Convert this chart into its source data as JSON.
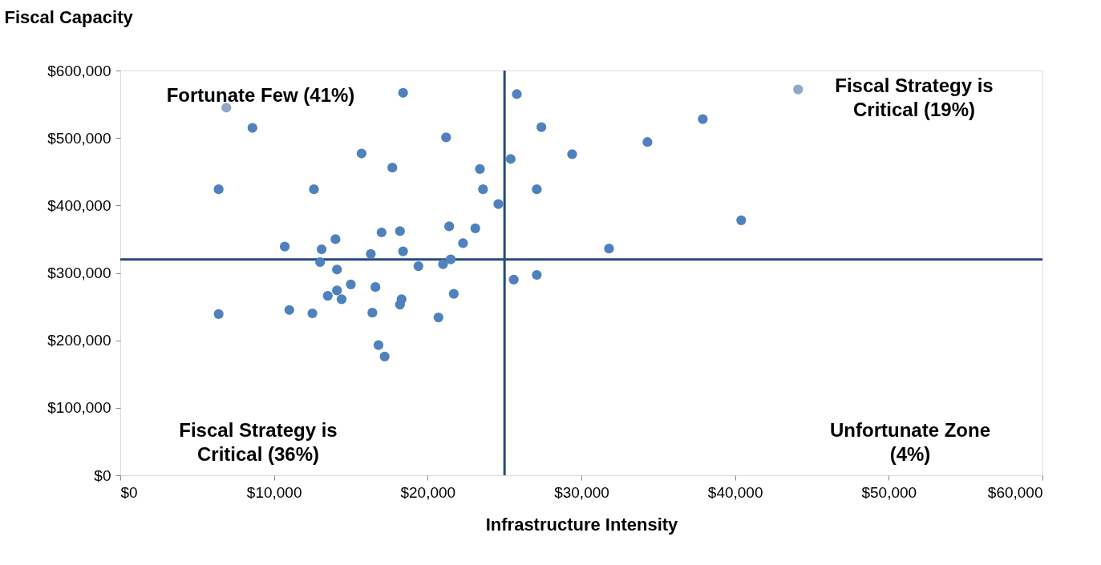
{
  "chart_data": {
    "type": "scatter",
    "xlabel": "Infrastructure Intensity",
    "ylabel": "Fiscal Capacity",
    "x": [
      6900,
      18400,
      8600,
      21200,
      15700,
      17700,
      23400,
      25400,
      6400,
      12600,
      23600,
      24600,
      21400,
      23100,
      17000,
      18200,
      14000,
      10700,
      13100,
      22300,
      16300,
      18400,
      13000,
      21500,
      21000,
      19400,
      14100,
      15000,
      16600,
      14100,
      13500,
      14400,
      18300,
      18200,
      21700,
      6400,
      11000,
      12500,
      16400,
      20700,
      16800,
      17200,
      25800,
      27400,
      29400,
      34300,
      37900,
      27100,
      40400,
      31800,
      25600,
      27100,
      44100
    ],
    "values": [
      545000,
      567000,
      515000,
      501000,
      477000,
      456000,
      454000,
      469000,
      424000,
      424000,
      424000,
      402000,
      369000,
      366000,
      360000,
      362000,
      350000,
      339000,
      335000,
      344000,
      328000,
      332000,
      316000,
      320000,
      313000,
      310000,
      305000,
      283000,
      279000,
      274000,
      266000,
      261000,
      261000,
      253000,
      269000,
      239000,
      245000,
      240000,
      241000,
      234000,
      193000,
      176000,
      565000,
      516000,
      476000,
      494000,
      528000,
      424000,
      378000,
      336000,
      290000,
      297000,
      572000
    ],
    "colors": [
      "#8fa9c6",
      "#4f81bd",
      "#4f81bd",
      "#4f81bd",
      "#4f81bd",
      "#4f81bd",
      "#4f81bd",
      "#4f81bd",
      "#4f81bd",
      "#4f81bd",
      "#4f81bd",
      "#4f81bd",
      "#4f81bd",
      "#4f81bd",
      "#4f81bd",
      "#4f81bd",
      "#4f81bd",
      "#4f81bd",
      "#4f81bd",
      "#4f81bd",
      "#4f81bd",
      "#4f81bd",
      "#4f81bd",
      "#4f81bd",
      "#4f81bd",
      "#4f81bd",
      "#4f81bd",
      "#4f81bd",
      "#4f81bd",
      "#4f81bd",
      "#4f81bd",
      "#4f81bd",
      "#4f81bd",
      "#4f81bd",
      "#4f81bd",
      "#4f81bd",
      "#4f81bd",
      "#4f81bd",
      "#4f81bd",
      "#4f81bd",
      "#4f81bd",
      "#4f81bd",
      "#4f81bd",
      "#4f81bd",
      "#4f81bd",
      "#4f81bd",
      "#4f81bd",
      "#4f81bd",
      "#4f81bd",
      "#4f81bd",
      "#4f81bd",
      "#4f81bd",
      "#8fa9c6"
    ],
    "xlim": [
      0,
      60000
    ],
    "ylim": [
      0,
      600000
    ],
    "xticks": [
      {
        "value": 0,
        "label": "$0"
      },
      {
        "value": 10000,
        "label": "$10,000"
      },
      {
        "value": 20000,
        "label": "$20,000"
      },
      {
        "value": 30000,
        "label": "$30,000"
      },
      {
        "value": 40000,
        "label": "$40,000"
      },
      {
        "value": 50000,
        "label": "$50,000"
      },
      {
        "value": 60000,
        "label": "$60,000"
      }
    ],
    "yticks": [
      {
        "value": 0,
        "label": "$0"
      },
      {
        "value": 100000,
        "label": "$100,000"
      },
      {
        "value": 200000,
        "label": "$200,000"
      },
      {
        "value": 300000,
        "label": "$300,000"
      },
      {
        "value": 400000,
        "label": "$400,000"
      },
      {
        "value": 500000,
        "label": "$500,000"
      },
      {
        "value": 600000,
        "label": "$600,000"
      }
    ],
    "ref_lines": [
      {
        "axis": "x",
        "value": 25000,
        "color": "#254a7f"
      },
      {
        "axis": "y",
        "value": 320000,
        "color": "#254a7f"
      }
    ],
    "annotations": [
      "Fortunate Few (41%)",
      "Fiscal Strategy is\nCritical (19%)",
      "Fiscal Strategy is\nCritical (36%)",
      "Unfortunate Zone\n(4%)"
    ],
    "marker": "circle"
  }
}
